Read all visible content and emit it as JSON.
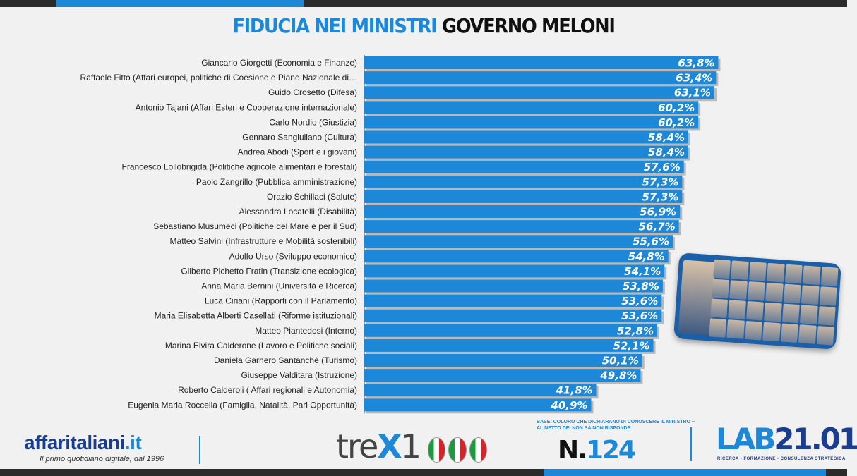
{
  "header": {
    "title_part1": "FIDUCIA NEI MINISTRI",
    "title_part2": "GOVERNO MELONI"
  },
  "chart_data": {
    "type": "bar",
    "orientation": "horizontal",
    "title": "FIDUCIA NEI MINISTRI GOVERNO MELONI",
    "xlabel": "",
    "ylabel": "",
    "xlim": [
      0,
      70
    ],
    "grid": false,
    "legend": "none",
    "bar_color": "#1e88d8",
    "categories": [
      "Giancarlo Giorgetti (Economia e Finanze)",
      "Raffaele Fitto (Affari europei, politiche di Coesione e Piano Nazionale di…",
      "Guido Crosetto (Difesa)",
      "Antonio Tajani (Affari Esteri e Cooperazione internazionale)",
      "Carlo Nordio (Giustizia)",
      "Gennaro Sangiuliano (Cultura)",
      "Andrea Abodi (Sport e i giovani)",
      "Francesco Lollobrigida (Politiche agricole alimentari e forestali)",
      "Paolo Zangrillo (Pubblica amministrazione)",
      "Orazio Schillaci (Salute)",
      "Alessandra Locatelli (Disabilità)",
      "Sebastiano Musumeci (Politiche del Mare e per il Sud)",
      "Matteo Salvini (Infrastrutture e Mobilità sostenibili)",
      "Adolfo Urso (Sviluppo economico)",
      "Gilberto Pichetto Fratin (Transizione ecologica)",
      "Anna Maria Bernini (Università e Ricerca)",
      "Luca Ciriani (Rapporti con il Parlamento)",
      "Maria Elisabetta Alberti Casellati (Riforme istituzionali)",
      "Matteo Piantedosi (Interno)",
      "Marina Elvira Calderone (Lavoro e Politiche sociali)",
      "Daniela Garnero Santanchè (Turismo)",
      "Giuseppe Valditara (Istruzione)",
      "Roberto Calderoli ( Affari regionali e Autonomia)",
      "Eugenia Maria Roccella (Famiglia, Natalità, Pari Opportunità)"
    ],
    "values": [
      63.8,
      63.4,
      63.1,
      60.2,
      60.2,
      58.4,
      58.4,
      57.6,
      57.3,
      57.3,
      56.9,
      56.7,
      55.6,
      54.8,
      54.1,
      53.8,
      53.6,
      53.6,
      52.8,
      52.1,
      50.1,
      49.8,
      41.8,
      40.9
    ],
    "value_labels": [
      "63,8%",
      "63,4%",
      "63,1%",
      "60,2%",
      "60,2%",
      "58,4%",
      "58,4%",
      "57,6%",
      "57,3%",
      "57,3%",
      "56,9%",
      "56,7%",
      "55,6%",
      "54,8%",
      "54,1%",
      "53,8%",
      "53,6%",
      "53,6%",
      "52,8%",
      "52,1%",
      "50,1%",
      "49,8%",
      "41,8%",
      "40,9%"
    ]
  },
  "footer": {
    "affari_brand": "affaritaliani",
    "affari_domain": ".it",
    "affari_tagline": "Il primo quotidiano digitale, dal 1996",
    "trex_text_a": "tre",
    "trex_text_x": "X",
    "trex_text_b": "1",
    "base_note": "BASE: COLORO CHE DICHIARANO DI CONOSCERE IL MINISTRO – AL NETTO DEI NON SA NON RISPONDE",
    "n_prefix": "N.",
    "n_value": "124",
    "lab_text": "LAB",
    "lab_number": "21.01",
    "lab_tagline": "RICERCA - FORMAZIONE - CONSULENZA STRATEGICA"
  },
  "colors": {
    "accent": "#1e88d8",
    "dark_blue": "#1a3d8f",
    "strip": "#2b2b2b"
  }
}
